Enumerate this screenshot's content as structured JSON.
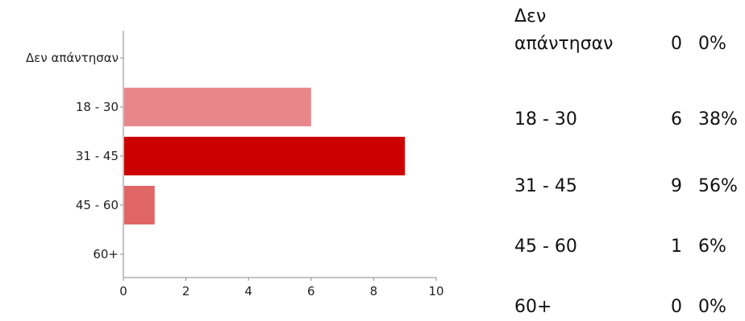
{
  "chart_data": {
    "type": "bar",
    "orientation": "horizontal",
    "categories": [
      "Δεν απάντησαν",
      "18 - 30",
      "31 - 45",
      "45 - 60",
      "60+"
    ],
    "values": [
      0,
      6,
      9,
      1,
      0
    ],
    "xlim": [
      0,
      10
    ],
    "xticks": [
      0,
      2,
      4,
      6,
      8,
      10
    ],
    "grid": false,
    "colors": [
      "#e8878a",
      "#e8878a",
      "#cc0000",
      "#e06666",
      "#e06666"
    ]
  },
  "summary": {
    "rows": [
      {
        "label": "Δεν απάντησαν",
        "count": "0",
        "percent": "0%"
      },
      {
        "label": "18 - 30",
        "count": "6",
        "percent": "38%"
      },
      {
        "label": "31 - 45",
        "count": "9",
        "percent": "56%"
      },
      {
        "label": "45 - 60",
        "count": "1",
        "percent": "6%"
      },
      {
        "label": "60+",
        "count": "0",
        "percent": "0%"
      }
    ]
  }
}
